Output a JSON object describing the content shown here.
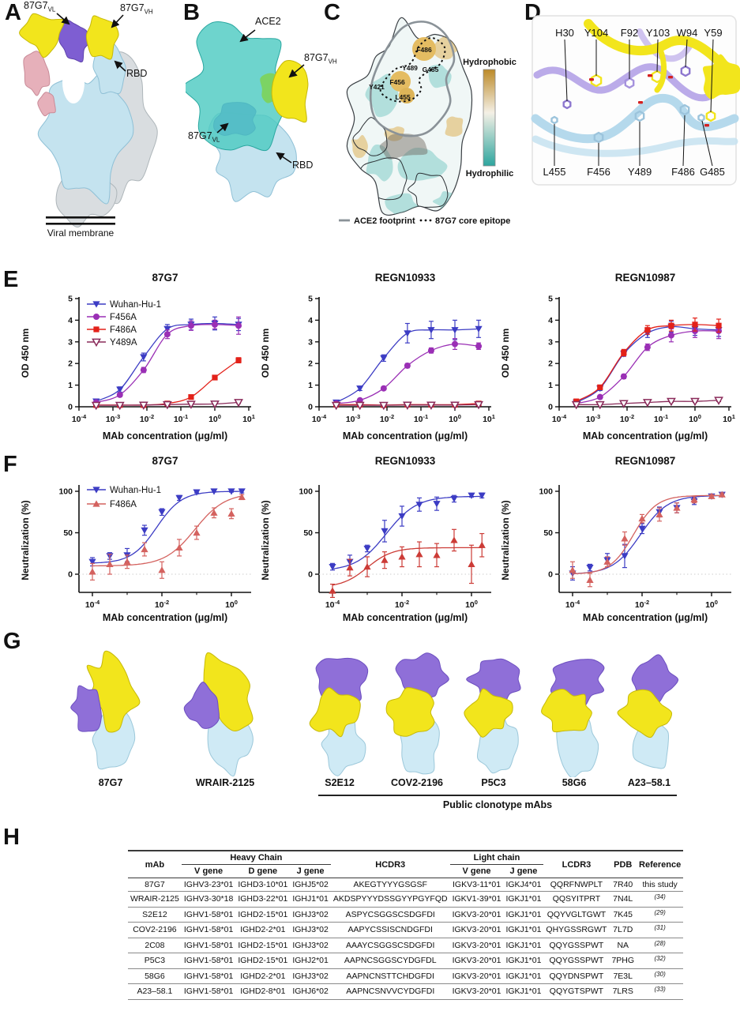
{
  "panel_a": {
    "letter": "A",
    "label_vl": {
      "base": "87G7",
      "sub": "VL"
    },
    "label_vh": {
      "base": "87G7",
      "sub": "VH"
    },
    "label_rbd": "RBD",
    "label_membrane": "Viral membrane"
  },
  "panel_b": {
    "letter": "B",
    "label_ace2": "ACE2",
    "label_vh": {
      "base": "87G7",
      "sub": "VH"
    },
    "label_vl": {
      "base": "87G7",
      "sub": "VL"
    },
    "label_rbd": "RBD"
  },
  "panel_c": {
    "letter": "C",
    "epitope_residues": [
      "F486",
      "Y489",
      "G485",
      "F456",
      "Y421",
      "L455"
    ],
    "colorbar_top": "Hydrophobic",
    "colorbar_bottom": "Hydrophilic",
    "legend_ace2": "ACE2 footprint",
    "legend_epitope": "87G7 core epitope"
  },
  "panel_d": {
    "letter": "D",
    "top_residues": [
      "H30",
      "Y104",
      "F92",
      "Y103",
      "W94",
      "Y59"
    ],
    "bottom_residues": [
      "L455",
      "F456",
      "Y489",
      "F486",
      "G485"
    ]
  },
  "panel_e": {
    "letter": "E"
  },
  "panel_f": {
    "letter": "F"
  },
  "panel_g": {
    "letter": "G",
    "mab_labels": [
      "87G7",
      "WRAIR-2125",
      "S2E12",
      "COV2-2196",
      "P5C3",
      "58G6",
      "A23–58.1"
    ],
    "group_label": "Public clonotype mAbs"
  },
  "panel_h": {
    "letter": "H",
    "table": {
      "col_mab": "mAb",
      "heavy_chain": "Heavy Chain",
      "light_chain": "Light chain",
      "v_gene": "V gene",
      "d_gene": "D gene",
      "j_gene": "J gene",
      "hcdr3": "HCDR3",
      "lcdr3": "LCDR3",
      "pdb": "PDB",
      "reference": "Reference",
      "rows": [
        {
          "mab": "87G7",
          "hv": "IGHV3-23*01",
          "hd": "IGHD3-10*01",
          "hj": "IGHJ5*02",
          "hcdr3": "AKEGTYYYGSGSF",
          "lv": "IGKV3-11*01",
          "lj": "IGKJ4*01",
          "lcdr3": "QQRFNWPLT",
          "pdb": "7R40",
          "ref": "this study",
          "ref_sup": false
        },
        {
          "mab": "WRAIR-2125",
          "hv": "IGHV3-30*18",
          "hd": "IGHD3-22*01",
          "hj": "IGHJ1*01",
          "hcdr3": "AKDSPYYYDSSGYYPGYFQD",
          "lv": "IGKV1-39*01",
          "lj": "IGKJ1*01",
          "lcdr3": "QQSYITPRT",
          "pdb": "7N4L",
          "ref": "(34)",
          "ref_sup": true
        },
        {
          "mab": "S2E12",
          "hv": "IGHV1-58*01",
          "hd": "IGHD2-15*01",
          "hj": "IGHJ3*02",
          "hcdr3": "ASPYCSGGSCSDGFDI",
          "lv": "IGKV3-20*01",
          "lj": "IGKJ1*01",
          "lcdr3": "QQYVGLTGWT",
          "pdb": "7K45",
          "ref": "(29)",
          "ref_sup": true
        },
        {
          "mab": "COV2-2196",
          "hv": "IGHV1-58*01",
          "hd": "IGHD2-2*01",
          "hj": "IGHJ3*02",
          "hcdr3": "AAPYCSSISCNDGFDI",
          "lv": "IGKV3-20*01",
          "lj": "IGKJ1*01",
          "lcdr3": "QHYGSSRGWT",
          "pdb": "7L7D",
          "ref": "(31)",
          "ref_sup": true
        },
        {
          "mab": "2C08",
          "hv": "IGHV1-58*01",
          "hd": "IGHD2-15*01",
          "hj": "IGHJ3*02",
          "hcdr3": "AAAYCSGGSCSDGFDI",
          "lv": "IGKV3-20*01",
          "lj": "IGKJ1*01",
          "lcdr3": "QQYGSSPWT",
          "pdb": "NA",
          "ref": "(28)",
          "ref_sup": true
        },
        {
          "mab": "P5C3",
          "hv": "IGHV1-58*01",
          "hd": "IGHD2-15*01",
          "hj": "IGHJ2*01",
          "hcdr3": "AAPNCSGGSCYDGFDL",
          "lv": "IGKV3-20*01",
          "lj": "IGKJ1*01",
          "lcdr3": "QQYGSSPWT",
          "pdb": "7PHG",
          "ref": "(32)",
          "ref_sup": true
        },
        {
          "mab": "58G6",
          "hv": "IGHV1-58*01",
          "hd": "IGHD2-2*01",
          "hj": "IGHJ3*02",
          "hcdr3": "AAPNCNSTTCHDGFDI",
          "lv": "IGKV3-20*01",
          "lj": "IGKJ1*01",
          "lcdr3": "QQYDNSPWT",
          "pdb": "7E3L",
          "ref": "(30)",
          "ref_sup": true
        },
        {
          "mab": "A23–58.1",
          "hv": "IGHV1-58*01",
          "hd": "IGHD2-8*01",
          "hj": "IGHJ6*02",
          "hcdr3": "AAPNCSNVVCYDGFDI",
          "lv": "IGKV3-20*01",
          "lj": "IGKJ1*01",
          "lcdr3": "QQYGTSPWT",
          "pdb": "7LRS",
          "ref": "(33)",
          "ref_sup": true
        }
      ]
    }
  },
  "colors": {
    "yellow": "#f2e51c",
    "yellow_edge": "#c6b90a",
    "purple": "#7e5ed2",
    "purple_light": "#b7a6e8",
    "purple_edge": "#5f43ad",
    "purple_fab": "#8f6fd8",
    "light_blue": "#c4e3ef",
    "light_blue_edge": "#8fc0d6",
    "gray_protomer": "#d9dde0",
    "gray_edge": "#aeb6ba",
    "pink": "#e6b0ba",
    "pink_edge": "#c98b98",
    "teal": "#4ecac2",
    "teal_edge": "#2aa7a0",
    "green_overlap": "#7fd24a",
    "surface_teal": "#7fccc6",
    "surface_tan": "#e0b765",
    "footprint_gray": "#8a9298",
    "ribbon_blue": "#b5d9ec",
    "stick_blue": "#9cc4dc",
    "bar_top": "#bc8a28",
    "bar_bottom": "#2da59e",
    "wuhan_blue": "#3c3cc4",
    "f456a_purple": "#9a2fb5",
    "f486a_red": "#e32119",
    "y489a_maroon": "#8a2b5a",
    "f486a_salmon": "#d4625f"
  },
  "chart_data": [
    {
      "id": "elisa-87g7",
      "kind": "elisa",
      "type": "line",
      "title": "87G7",
      "xlabel": "MAb concentration (μg/ml)",
      "ylabel": "OD 450 nm",
      "xscale": "log",
      "xlim_log": [
        -4,
        1
      ],
      "xticks_log": [
        -4,
        -3,
        -2,
        -1,
        0,
        1
      ],
      "ylim": [
        0,
        5
      ],
      "yticks": [
        0,
        1,
        2,
        3,
        4,
        5
      ],
      "legend": true,
      "grid": false,
      "x": [
        0.00032,
        0.0016,
        0.008,
        0.04,
        0.2,
        1,
        5
      ],
      "series": [
        {
          "name": "Wuhan-Hu-1",
          "color": "#3c3cc4",
          "marker": "triangle-down",
          "values": [
            0.25,
            0.8,
            2.3,
            3.6,
            3.8,
            3.85,
            3.8
          ],
          "err": [
            0.1,
            0.12,
            0.18,
            0.2,
            0.25,
            0.3,
            0.28
          ]
        },
        {
          "name": "F456A",
          "color": "#9a2fb5",
          "marker": "circle",
          "values": [
            0.2,
            0.55,
            1.7,
            3.35,
            3.75,
            3.8,
            3.75
          ],
          "err": [
            0.06,
            0.08,
            0.12,
            0.2,
            0.22,
            0.2,
            0.4
          ]
        },
        {
          "name": "F486A",
          "color": "#e32119",
          "marker": "square",
          "values": [
            0.08,
            0.08,
            0.08,
            0.15,
            0.45,
            1.35,
            2.15
          ],
          "err": [
            0.03,
            0.03,
            0.03,
            0.04,
            0.06,
            0.1,
            0.12
          ]
        },
        {
          "name": "Y489A",
          "color": "#8a2b5a",
          "marker": "triangle-down-open",
          "values": [
            0.07,
            0.07,
            0.08,
            0.1,
            0.12,
            0.13,
            0.2
          ],
          "err": [
            0.02,
            0.02,
            0.02,
            0.03,
            0.03,
            0.03,
            0.05
          ]
        }
      ]
    },
    {
      "id": "elisa-regn10933",
      "kind": "elisa",
      "type": "line",
      "title": "REGN10933",
      "xlabel": "MAb concentration (μg/ml)",
      "ylabel": "OD 450 nm",
      "xscale": "log",
      "xlim_log": [
        -4,
        1
      ],
      "xticks_log": [
        -4,
        -3,
        -2,
        -1,
        0,
        1
      ],
      "ylim": [
        0,
        5
      ],
      "yticks": [
        0,
        1,
        2,
        3,
        4,
        5
      ],
      "legend": false,
      "grid": false,
      "x": [
        0.00032,
        0.0016,
        0.008,
        0.04,
        0.2,
        1,
        5
      ],
      "series": [
        {
          "name": "Wuhan-Hu-1",
          "color": "#3c3cc4",
          "marker": "triangle-down",
          "values": [
            0.2,
            0.85,
            2.25,
            3.4,
            3.55,
            3.55,
            3.6
          ],
          "err": [
            0.06,
            0.1,
            0.15,
            0.45,
            0.4,
            0.45,
            0.4
          ]
        },
        {
          "name": "F456A",
          "color": "#9a2fb5",
          "marker": "circle",
          "values": [
            0.15,
            0.3,
            0.85,
            1.9,
            2.6,
            2.9,
            2.8
          ],
          "err": [
            0.04,
            0.06,
            0.08,
            0.1,
            0.12,
            0.25,
            0.15
          ]
        },
        {
          "name": "F486A",
          "color": "#e32119",
          "marker": "square",
          "values": [
            0.1,
            0.1,
            0.08,
            0.1,
            0.1,
            0.1,
            0.15
          ],
          "err": [
            0.03,
            0.03,
            0.03,
            0.03,
            0.03,
            0.03,
            0.05
          ]
        },
        {
          "name": "Y489A",
          "color": "#8a2b5a",
          "marker": "triangle-down-open",
          "values": [
            0.07,
            0.07,
            0.07,
            0.08,
            0.08,
            0.08,
            0.1
          ],
          "err": [
            0.02,
            0.02,
            0.02,
            0.02,
            0.02,
            0.02,
            0.03
          ]
        }
      ]
    },
    {
      "id": "elisa-regn10987",
      "kind": "elisa",
      "type": "line",
      "title": "REGN10987",
      "xlabel": "MAb concentration (μg/ml)",
      "ylabel": "OD 450 nm",
      "xscale": "log",
      "xlim_log": [
        -4,
        1
      ],
      "xticks_log": [
        -4,
        -3,
        -2,
        -1,
        0,
        1
      ],
      "ylim": [
        0,
        5
      ],
      "yticks": [
        0,
        1,
        2,
        3,
        4,
        5
      ],
      "legend": false,
      "grid": false,
      "x": [
        0.00032,
        0.0016,
        0.008,
        0.04,
        0.2,
        1,
        5
      ],
      "series": [
        {
          "name": "Wuhan-Hu-1",
          "color": "#3c3cc4",
          "marker": "triangle-down",
          "values": [
            0.2,
            0.85,
            2.45,
            3.4,
            3.7,
            3.6,
            3.55
          ],
          "err": [
            0.08,
            0.1,
            0.12,
            0.2,
            0.25,
            0.3,
            0.3
          ]
        },
        {
          "name": "F456A",
          "color": "#9a2fb5",
          "marker": "circle",
          "values": [
            0.15,
            0.45,
            1.4,
            2.75,
            3.3,
            3.5,
            3.5
          ],
          "err": [
            0.05,
            0.08,
            0.1,
            0.15,
            0.3,
            0.3,
            0.35
          ]
        },
        {
          "name": "F486A",
          "color": "#e32119",
          "marker": "square",
          "values": [
            0.25,
            0.9,
            2.5,
            3.55,
            3.75,
            3.8,
            3.75
          ],
          "err": [
            0.06,
            0.1,
            0.15,
            0.2,
            0.25,
            0.3,
            0.3
          ]
        },
        {
          "name": "Y489A",
          "color": "#8a2b5a",
          "marker": "triangle-down-open",
          "values": [
            0.1,
            0.1,
            0.15,
            0.2,
            0.25,
            0.25,
            0.3
          ],
          "err": [
            0.02,
            0.02,
            0.03,
            0.04,
            0.05,
            0.05,
            0.06
          ]
        }
      ]
    },
    {
      "id": "neut-87g7",
      "kind": "neut",
      "type": "line",
      "title": "87G7",
      "xlabel": "MAb concentration (μg/ml)",
      "ylabel": "Neutralization (%)",
      "xscale": "log",
      "xlim_log": [
        -4,
        0.3
      ],
      "xticks_log": [
        -4,
        -2,
        0
      ],
      "xticks_minor": [
        -3,
        -1
      ],
      "ylim": [
        -25,
        110
      ],
      "yticks": [
        0,
        50,
        100
      ],
      "legend": true,
      "zeroline": true,
      "grid": false,
      "x": [
        0.0001,
        0.000316,
        0.001,
        0.00316,
        0.01,
        0.0316,
        0.1,
        0.316,
        1,
        2
      ],
      "series": [
        {
          "name": "Wuhan-Hu-1",
          "color": "#3c3cc4",
          "marker": "triangle-down",
          "values": [
            15,
            22,
            23,
            53,
            75,
            92,
            99,
            100,
            100,
            100
          ],
          "err": [
            5,
            4,
            8,
            6,
            4,
            3,
            1,
            1,
            1,
            2
          ],
          "fit": {
            "bottom": 13,
            "top": 100,
            "logec50": -2.15,
            "hill": 1.2
          }
        },
        {
          "name": "F486A",
          "color": "#d4625f",
          "marker": "triangle-up",
          "values": [
            3,
            12,
            15,
            30,
            5,
            32,
            50,
            74,
            73,
            93
          ],
          "err": [
            10,
            12,
            8,
            8,
            10,
            10,
            8,
            6,
            6,
            3
          ],
          "fit": {
            "bottom": 10,
            "top": 98,
            "logec50": -1.05,
            "hill": 1.0
          }
        }
      ]
    },
    {
      "id": "neut-regn10933",
      "kind": "neut",
      "type": "line",
      "title": "REGN10933",
      "xlabel": "MAb concentration (μg/ml)",
      "ylabel": "Neutralization (%)",
      "xscale": "log",
      "xlim_log": [
        -4,
        0.3
      ],
      "xticks_log": [
        -4,
        -2,
        0
      ],
      "xticks_minor": [
        -3,
        -1
      ],
      "ylim": [
        -25,
        110
      ],
      "yticks": [
        0,
        50,
        100
      ],
      "legend": false,
      "zeroline": true,
      "grid": false,
      "x": [
        0.0001,
        0.000316,
        0.001,
        0.00316,
        0.01,
        0.0316,
        0.1,
        0.316,
        1,
        2
      ],
      "series": [
        {
          "name": "Wuhan-Hu-1",
          "color": "#3c3cc4",
          "marker": "triangle-down",
          "values": [
            9,
            15,
            31,
            52,
            70,
            84,
            85,
            91,
            95,
            95
          ],
          "err": [
            4,
            8,
            4,
            13,
            12,
            8,
            8,
            4,
            2,
            3
          ],
          "fit": {
            "bottom": 4,
            "top": 94,
            "logec50": -2.45,
            "hill": 1.0
          }
        },
        {
          "name": "F486A",
          "color": "#cc3b36",
          "marker": "triangle-up",
          "values": [
            -20,
            8,
            9,
            17,
            21,
            24,
            23,
            41,
            12,
            35
          ],
          "err": [
            8,
            10,
            12,
            10,
            12,
            15,
            14,
            13,
            23,
            14
          ],
          "fit": {
            "bottom": -16,
            "top": 32,
            "logec50": -3.0,
            "hill": 1.2
          }
        }
      ]
    },
    {
      "id": "neut-regn10987",
      "kind": "neut",
      "type": "line",
      "title": "REGN10987",
      "xlabel": "MAb concentration (μg/ml)",
      "ylabel": "Neutralization (%)",
      "xscale": "log",
      "xlim_log": [
        -4,
        0.3
      ],
      "xticks_log": [
        -4,
        -2,
        0
      ],
      "xticks_minor": [
        -3,
        -1
      ],
      "ylim": [
        -25,
        110
      ],
      "yticks": [
        0,
        50,
        100
      ],
      "legend": false,
      "zeroline": true,
      "grid": false,
      "x": [
        0.0001,
        0.000316,
        0.001,
        0.00316,
        0.01,
        0.0316,
        0.1,
        0.316,
        1,
        2
      ],
      "series": [
        {
          "name": "Wuhan-Hu-1",
          "color": "#3c3cc4",
          "marker": "triangle-down",
          "values": [
            1,
            8,
            17,
            22,
            55,
            75,
            80,
            88,
            94,
            96
          ],
          "err": [
            8,
            4,
            8,
            14,
            6,
            6,
            6,
            4,
            2,
            2
          ],
          "fit": {
            "bottom": 0,
            "top": 95,
            "logec50": -2.05,
            "hill": 1.1
          }
        },
        {
          "name": "F486A",
          "color": "#d4625f",
          "marker": "triangle-up",
          "values": [
            5,
            -7,
            15,
            43,
            67,
            72,
            80,
            90,
            94,
            96
          ],
          "err": [
            10,
            8,
            6,
            8,
            5,
            8,
            6,
            4,
            2,
            2
          ],
          "fit": {
            "bottom": 0,
            "top": 95,
            "logec50": -2.25,
            "hill": 1.3
          }
        }
      ]
    }
  ]
}
